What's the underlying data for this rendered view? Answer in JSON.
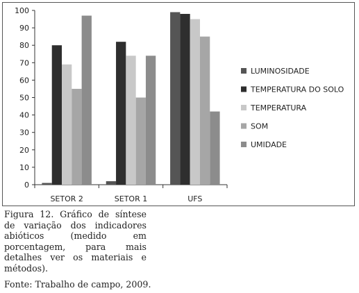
{
  "chart_data": {
    "type": "bar",
    "categories": [
      "SETOR 2",
      "SETOR 1",
      "UFS"
    ],
    "series": [
      {
        "name": "LUMINOSIDADE",
        "values": [
          1,
          2,
          99
        ],
        "color": "#555555"
      },
      {
        "name": "TEMPERATURA DO SOLO",
        "values": [
          80,
          82,
          98
        ],
        "color": "#2e2e2e"
      },
      {
        "name": "TEMPERATURA",
        "values": [
          69,
          74,
          95
        ],
        "color": "#c8c8c8"
      },
      {
        "name": "SOM",
        "values": [
          55,
          50,
          85
        ],
        "color": "#a6a6a6"
      },
      {
        "name": "UMIDADE",
        "values": [
          97,
          74,
          42
        ],
        "color": "#8c8c8c"
      }
    ],
    "yticks": [
      0,
      10,
      20,
      30,
      40,
      50,
      60,
      70,
      80,
      90,
      100
    ],
    "ylim": [
      0,
      100
    ],
    "grid": false,
    "legend_position": "right"
  },
  "caption": "Figura 12. Gráfico de síntese de variação dos indicadores abióticos (medido em porcentagem, para mais detalhes ver os materiais e métodos).",
  "source": "Fonte: Trabalho de campo, 2009."
}
